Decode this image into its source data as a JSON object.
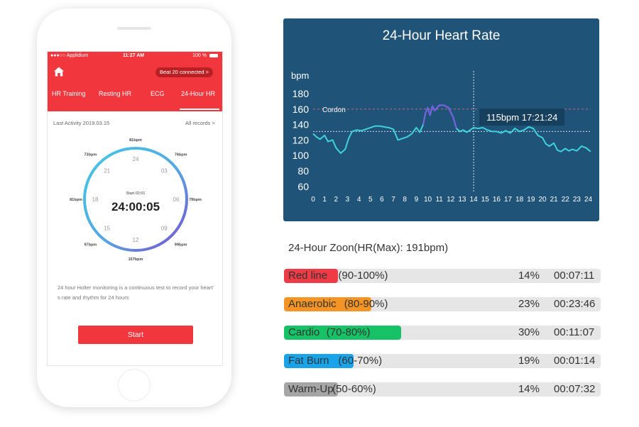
{
  "phone": {
    "status": {
      "carrier": "●●●○○ Applidium",
      "time": "11:27 AM",
      "battery": "100 %"
    },
    "beat_connected": "Beat 20 connected >",
    "tabs": [
      "HR Training",
      "Resting HR",
      "ECG",
      "24-Hour HR"
    ],
    "active_tab": "24-Hour HR",
    "last_activity": "Last Activity 2019.03.15",
    "all_records": "All records >",
    "dial": {
      "start_label": "Start 02:01",
      "elapsed": "24:00:05",
      "hour_labels": [
        "24",
        "03",
        "06",
        "09",
        "12",
        "15",
        "18",
        "21"
      ],
      "bpm_labels": [
        "81bpm",
        "76bpm",
        "79bpm",
        "99bpm",
        "157bpm",
        "97bpm",
        "81bpm",
        "73bpm"
      ],
      "ring_color_start": "#41c9e6",
      "ring_color_end": "#7a4fd1"
    },
    "description": "24 hour Holter monitoring is a continuous test to record your heart' s rate and rhythm for 24 hours",
    "start_button": "Start",
    "accent_color": "#f2363d"
  },
  "chart_data": {
    "type": "line",
    "title": "24-Hour Heart Rate",
    "ylabel": "bpm",
    "xlabel": "",
    "ylim": [
      60,
      180
    ],
    "yticks": [
      180,
      160,
      140,
      120,
      100,
      80,
      60
    ],
    "xticks": [
      0,
      1,
      2,
      3,
      4,
      5,
      6,
      7,
      8,
      9,
      10,
      11,
      12,
      13,
      14,
      15,
      16,
      17,
      18,
      19,
      20,
      21,
      22,
      23,
      24
    ],
    "reference_line": {
      "label": "Cordon",
      "value": 160
    },
    "average_line": 131,
    "cursor": {
      "x": 14,
      "label": "115bpm  17:21:24"
    },
    "series": [
      {
        "x": [
          0,
          0.3,
          0.6,
          1,
          1.3,
          1.7,
          2,
          2.4,
          2.8,
          3.1,
          3.4,
          3.8,
          4.2,
          4.6,
          5,
          5.4,
          5.8,
          6.2,
          6.6,
          7,
          7.4,
          7.8,
          8.2,
          8.6,
          9,
          9.3,
          9.6,
          9.8,
          10,
          10.2,
          10.4,
          10.6,
          11,
          11.4,
          11.8,
          12.2,
          12.5,
          12.8,
          13.1,
          13.4,
          13.7,
          14,
          14.4,
          14.8,
          15.2,
          15.6,
          16,
          16.4,
          16.8,
          17.2,
          17.6,
          18,
          18.4,
          18.8,
          19.2,
          19.6,
          20,
          20.3,
          20.6,
          21,
          21.3,
          21.6,
          22,
          22.3,
          22.6,
          23,
          23.4,
          23.8,
          24.2
        ],
        "y": [
          128,
          124,
          121,
          126,
          118,
          120,
          110,
          103,
          108,
          122,
          131,
          133,
          132,
          134,
          136,
          138,
          138,
          137,
          136,
          134,
          120,
          122,
          124,
          128,
          136,
          130,
          140,
          155,
          162,
          152,
          164,
          158,
          165,
          165,
          162,
          150,
          135,
          131,
          133,
          130,
          133,
          136,
          135,
          136,
          133,
          131,
          131,
          129,
          132,
          129,
          135,
          131,
          133,
          137,
          135,
          126,
          123,
          115,
          112,
          116,
          107,
          105,
          109,
          106,
          108,
          106,
          112,
          110,
          105
        ],
        "color": "#41d1dc",
        "highlight_color": "#7a5ee0"
      }
    ],
    "grid": false,
    "background": "#1f5378"
  },
  "zones": {
    "title": "24-Hour Zoon(HR(Max): 191bpm)",
    "items": [
      {
        "name": "Red line",
        "range": "(90-100%)",
        "percent": "14%",
        "time": "00:07:11",
        "fill": 0.17,
        "color": "#ef3b45"
      },
      {
        "name": "Anaerobic",
        "range": "(80-90%)",
        "percent": "23%",
        "time": "00:23:46",
        "fill": 0.275,
        "color": "#f39425"
      },
      {
        "name": "Cardio",
        "range": "(70-80%)",
        "percent": "30%",
        "time": "00:11:07",
        "fill": 0.37,
        "color": "#17c165"
      },
      {
        "name": "Fat Burn",
        "range": "(60-70%)",
        "percent": "19%",
        "time": "00:01:14",
        "fill": 0.22,
        "color": "#19a3e8"
      },
      {
        "name": "Warm-Up",
        "range": "(50-60%)",
        "percent": "14%",
        "time": "00:07:32",
        "fill": 0.17,
        "color": "#a5a5a5"
      }
    ]
  }
}
